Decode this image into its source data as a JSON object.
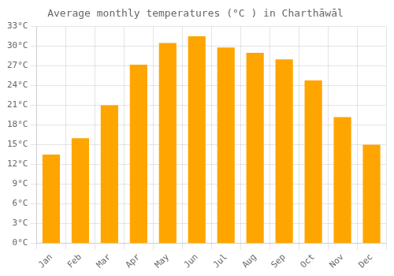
{
  "chart_data": {
    "type": "bar",
    "title": "Average monthly temperatures (°C ) in Charthāwāl",
    "categories": [
      "Jan",
      "Feb",
      "Mar",
      "Apr",
      "May",
      "Jun",
      "Jul",
      "Aug",
      "Sep",
      "Oct",
      "Nov",
      "Dec"
    ],
    "values": [
      13.5,
      16.0,
      21.0,
      27.2,
      30.5,
      31.5,
      29.8,
      29.0,
      28.0,
      24.8,
      19.2,
      15.0
    ],
    "color": "#FFA500",
    "ylim": [
      0,
      33
    ],
    "yticks": [
      {
        "value": 0,
        "label": "0°C"
      },
      {
        "value": 3,
        "label": "3°C"
      },
      {
        "value": 6,
        "label": "6°C"
      },
      {
        "value": 9,
        "label": "9°C"
      },
      {
        "value": 12,
        "label": "12°C"
      },
      {
        "value": 15,
        "label": "15°C"
      },
      {
        "value": 18,
        "label": "18°C"
      },
      {
        "value": 21,
        "label": "21°C"
      },
      {
        "value": 24,
        "label": "24°C"
      },
      {
        "value": 27,
        "label": "27°C"
      },
      {
        "value": 30,
        "label": "30°C"
      },
      {
        "value": 33,
        "label": "33°C"
      }
    ],
    "grid": true
  }
}
